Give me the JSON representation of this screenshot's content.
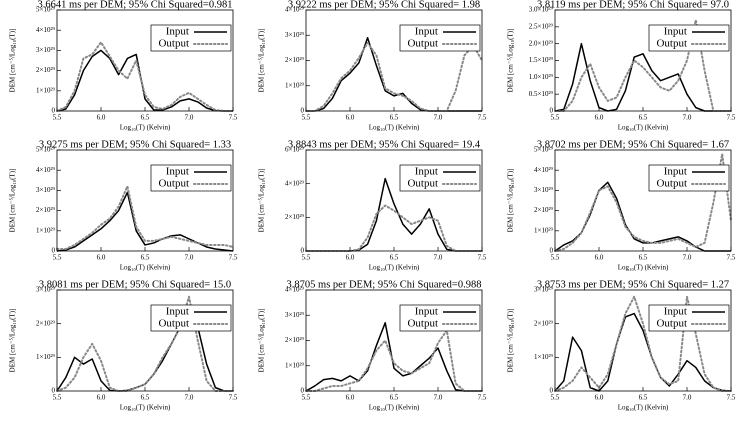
{
  "chart_data": [
    {
      "type": "line",
      "title": "3.6641 ms per DEM; 95% Chi Squared=0.981",
      "x_label": "Log₁₀(T) (Kelvin)",
      "y_label": "DEM [cm⁻⁵/Log₁₀(T)]",
      "x": [
        5.5,
        5.6,
        5.7,
        5.8,
        5.9,
        6.0,
        6.1,
        6.2,
        6.3,
        6.4,
        6.5,
        6.6,
        6.7,
        6.8,
        6.9,
        7.0,
        7.1,
        7.2,
        7.3,
        7.4,
        7.5
      ],
      "series": [
        {
          "name": "Input",
          "color": "#000000",
          "style": "solid",
          "values": [
            0,
            1e+28,
            8e+28,
            2e+29,
            2.7e+29,
            3e+29,
            2.6e+29,
            1.8e+29,
            2.6e+29,
            2.8e+29,
            6e+28,
            5e+27,
            5e+27,
            2e+28,
            5e+28,
            6e+28,
            4.5e+28,
            1.5e+28,
            2e+27,
            0,
            0
          ]
        },
        {
          "name": "Output",
          "color": "#888888",
          "style": "dotted",
          "values": [
            0,
            2e+28,
            1e+29,
            2.6e+29,
            2.8e+29,
            3.4e+29,
            2.7e+29,
            2e+29,
            1.6e+29,
            2.5e+29,
            8e+28,
            2e+28,
            1e+28,
            3e+28,
            7e+28,
            9e+28,
            6e+28,
            3e+28,
            5e+27,
            0,
            0
          ]
        }
      ],
      "xlim": [
        5.5,
        7.5
      ],
      "xticks": [
        5.5,
        {
          "value": 6,
          "label": "6.0"
        },
        6.5,
        {
          "value": 7,
          "label": "7.0"
        },
        7.5
      ],
      "ylim": [
        0,
        5e+29
      ],
      "yticks": [
        0,
        {
          "value": 1e+29,
          "label": "1×10²⁹"
        },
        {
          "value": 2e+29,
          "label": "2×10²⁹"
        },
        {
          "value": 3e+29,
          "label": "3×10²⁹"
        },
        {
          "value": 4e+29,
          "label": "4×10²⁹"
        },
        {
          "value": 5e+29,
          "label": "5×10²⁹"
        }
      ]
    },
    {
      "type": "line",
      "title": "3.9222 ms per DEM; 95% Chi Squared= 1.98",
      "x_label": "Log₁₀(T) (Kelvin)",
      "y_label": "DEM [cm⁻⁵/Log₁₀(T)]",
      "x": [
        5.5,
        5.6,
        5.7,
        5.8,
        5.9,
        6.0,
        6.1,
        6.2,
        6.3,
        6.4,
        6.5,
        6.6,
        6.7,
        6.8,
        6.9,
        7.0,
        7.1,
        7.2,
        7.3,
        7.4,
        7.5
      ],
      "series": [
        {
          "name": "Input",
          "color": "#000000",
          "style": "solid",
          "values": [
            0,
            0,
            1e+28,
            5e+28,
            1.2e+29,
            1.5e+29,
            1.9e+29,
            2.9e+29,
            1.8e+29,
            8e+28,
            6e+28,
            7e+28,
            3e+28,
            5e+27,
            0,
            0,
            0,
            0,
            0,
            0,
            0
          ]
        },
        {
          "name": "Output",
          "color": "#888888",
          "style": "dotted",
          "values": [
            0,
            0,
            2e+28,
            7e+28,
            1.3e+29,
            1.6e+29,
            2.1e+29,
            2.7e+29,
            2.2e+29,
            9e+28,
            7e+28,
            6e+28,
            4e+28,
            1e+28,
            0,
            0,
            0,
            8e+28,
            2.2e+29,
            2.6e+29,
            2e+29
          ]
        }
      ],
      "xlim": [
        5.5,
        7.5
      ],
      "xticks": [
        5.5,
        {
          "value": 6,
          "label": "6.0"
        },
        6.5,
        {
          "value": 7,
          "label": "7.0"
        },
        7.5
      ],
      "ylim": [
        0,
        4e+29
      ],
      "yticks": [
        0,
        {
          "value": 1e+29,
          "label": "1×10²⁹"
        },
        {
          "value": 2e+29,
          "label": "2×10²⁹"
        },
        {
          "value": 3e+29,
          "label": "3×10²⁹"
        },
        {
          "value": 4e+29,
          "label": "4×10²⁹"
        }
      ]
    },
    {
      "type": "line",
      "title": "3.8119 ms per DEM; 95% Chi Squared= 97.0",
      "x_label": "Log₁₀(T) (Kelvin)",
      "y_label": "DEM [cm⁻⁵/Log₁₀(T)]",
      "x": [
        5.5,
        5.6,
        5.7,
        5.8,
        5.9,
        6.0,
        6.1,
        6.2,
        6.3,
        6.4,
        6.5,
        6.6,
        6.7,
        6.8,
        6.9,
        7.0,
        7.1,
        7.2,
        7.3,
        7.4,
        7.5
      ],
      "series": [
        {
          "name": "Input",
          "color": "#000000",
          "style": "solid",
          "values": [
            0,
            5e+27,
            8e+28,
            2e+29,
            9e+28,
            1e+28,
            0,
            5e+27,
            6e+28,
            1.6e+29,
            1.7e+29,
            1.2e+29,
            9e+28,
            1e+29,
            1.1e+29,
            5e+28,
            1e+28,
            0,
            0,
            0,
            0
          ]
        },
        {
          "name": "Output",
          "color": "#888888",
          "style": "dotted",
          "values": [
            0,
            0,
            3e+28,
            1e+29,
            1.4e+29,
            7e+28,
            3e+28,
            4e+28,
            1e+29,
            1.5e+29,
            1.3e+29,
            1e+29,
            7e+28,
            6e+28,
            9e+28,
            1.5e+29,
            2.7e+29,
            1.2e+29,
            0,
            0,
            0
          ]
        }
      ],
      "xlim": [
        5.5,
        7.5
      ],
      "xticks": [
        5.5,
        {
          "value": 6,
          "label": "6.0"
        },
        6.5,
        {
          "value": 7,
          "label": "7.0"
        },
        7.5
      ],
      "ylim": [
        0,
        3e+29
      ],
      "yticks": [
        0,
        {
          "value": 5e+28,
          "label": "0.5×10²⁹"
        },
        {
          "value": 1e+29,
          "label": "1.0×10²⁹"
        },
        {
          "value": 1.5e+29,
          "label": "1.5×10²⁹"
        },
        {
          "value": 2e+29,
          "label": "2.0×10²⁹"
        },
        {
          "value": 2.5e+29,
          "label": "2.5×10²⁹"
        },
        {
          "value": 3e+29,
          "label": "3.0×10²⁹"
        }
      ]
    },
    {
      "type": "line",
      "title": "3.9275 ms per DEM; 95% Chi Squared= 1.33",
      "x_label": "Log₁₀(T) (Kelvin)",
      "y_label": "DEM [cm⁻⁵/Log₁₀(T)]",
      "x": [
        5.5,
        5.6,
        5.7,
        5.8,
        5.9,
        6.0,
        6.1,
        6.2,
        6.3,
        6.4,
        6.5,
        6.6,
        6.7,
        6.8,
        6.9,
        7.0,
        7.1,
        7.2,
        7.3,
        7.4,
        7.5
      ],
      "series": [
        {
          "name": "Input",
          "color": "#000000",
          "style": "solid",
          "values": [
            0,
            5e+27,
            2e+28,
            5e+28,
            8e+28,
            1.1e+29,
            1.5e+29,
            2e+29,
            2.9e+29,
            1e+29,
            3e+28,
            4e+28,
            6e+28,
            7.5e+28,
            8e+28,
            6e+28,
            4e+28,
            2e+28,
            1e+28,
            5e+27,
            0
          ]
        },
        {
          "name": "Output",
          "color": "#888888",
          "style": "dotted",
          "values": [
            1e+28,
            1e+28,
            3e+28,
            6e+28,
            9e+28,
            1.3e+29,
            1.6e+29,
            2.2e+29,
            3.2e+29,
            1.2e+29,
            5e+28,
            5e+28,
            6e+28,
            7e+28,
            6e+28,
            5e+28,
            4e+28,
            3e+28,
            3e+28,
            3e+28,
            2e+28
          ]
        }
      ],
      "xlim": [
        5.5,
        7.5
      ],
      "xticks": [
        5.5,
        {
          "value": 6,
          "label": "6.0"
        },
        6.5,
        {
          "value": 7,
          "label": "7.0"
        },
        7.5
      ],
      "ylim": [
        0,
        5e+29
      ],
      "yticks": [
        0,
        {
          "value": 1e+29,
          "label": "1×10²⁹"
        },
        {
          "value": 2e+29,
          "label": "2×10²⁹"
        },
        {
          "value": 3e+29,
          "label": "3×10²⁹"
        },
        {
          "value": 4e+29,
          "label": "4×10²⁹"
        },
        {
          "value": 5e+29,
          "label": "5×10²⁹"
        }
      ]
    },
    {
      "type": "line",
      "title": "3.8843 ms per DEM; 95% Chi Squared= 19.4",
      "x_label": "Log₁₀(T) (Kelvin)",
      "y_label": "DEM [cm⁻⁵/Log₁₀(T)]",
      "x": [
        5.5,
        5.6,
        5.7,
        5.8,
        5.9,
        6.0,
        6.1,
        6.2,
        6.3,
        6.4,
        6.5,
        6.6,
        6.7,
        6.8,
        6.9,
        7.0,
        7.1,
        7.2,
        7.3,
        7.4,
        7.5
      ],
      "series": [
        {
          "name": "Input",
          "color": "#000000",
          "style": "solid",
          "values": [
            0,
            0,
            0,
            0,
            0,
            0,
            5e+27,
            4e+28,
            1.8e+29,
            4.3e+29,
            2.8e+29,
            1.6e+29,
            1e+29,
            1.6e+29,
            2.5e+29,
            1e+29,
            1e+28,
            0,
            0,
            0,
            0
          ]
        },
        {
          "name": "Output",
          "color": "#888888",
          "style": "dotted",
          "values": [
            0,
            0,
            0,
            0,
            0,
            0,
            1e+28,
            8e+28,
            2.2e+29,
            2.7e+29,
            2.4e+29,
            2e+29,
            1.6e+29,
            1.8e+29,
            2e+29,
            1.8e+29,
            3e+28,
            0,
            0,
            0,
            0
          ]
        }
      ],
      "xlim": [
        5.5,
        7.5
      ],
      "xticks": [
        5.5,
        {
          "value": 6,
          "label": "6.0"
        },
        6.5,
        {
          "value": 7,
          "label": "7.0"
        },
        7.5
      ],
      "ylim": [
        0,
        6e+29
      ],
      "yticks": [
        0,
        {
          "value": 2e+29,
          "label": "2×10²⁹"
        },
        {
          "value": 4e+29,
          "label": "4×10²⁹"
        },
        {
          "value": 6e+29,
          "label": "6×10²⁹"
        }
      ]
    },
    {
      "type": "line",
      "title": "3.8702 ms per DEM; 95% Chi Squared= 1.67",
      "x_label": "Log₁₀(T) (Kelvin)",
      "y_label": "DEM [cm⁻⁵/Log₁₀(T)]",
      "x": [
        5.5,
        5.6,
        5.7,
        5.8,
        5.9,
        6.0,
        6.1,
        6.2,
        6.3,
        6.4,
        6.5,
        6.6,
        6.7,
        6.8,
        6.9,
        7.0,
        7.1,
        7.2,
        7.3,
        7.4,
        7.5
      ],
      "series": [
        {
          "name": "Input",
          "color": "#000000",
          "style": "solid",
          "values": [
            0,
            3e+28,
            5e+28,
            9e+28,
            1.8e+29,
            3e+29,
            3.4e+29,
            2.6e+29,
            1.3e+29,
            6e+28,
            4e+28,
            4e+28,
            5e+28,
            6e+28,
            7e+28,
            5e+28,
            2e+28,
            0,
            0,
            0,
            0
          ]
        },
        {
          "name": "Output",
          "color": "#888888",
          "style": "dotted",
          "values": [
            0,
            1e+28,
            4e+28,
            9e+28,
            1.9e+29,
            3e+29,
            3.2e+29,
            2.4e+29,
            1.2e+29,
            7e+28,
            5e+28,
            4e+28,
            4e+28,
            5e+28,
            6e+28,
            4e+28,
            2e+28,
            4e+28,
            2.4e+29,
            4.8e+29,
            1.5e+29
          ]
        }
      ],
      "xlim": [
        5.5,
        7.5
      ],
      "xticks": [
        5.5,
        {
          "value": 6,
          "label": "6.0"
        },
        6.5,
        {
          "value": 7,
          "label": "7.0"
        },
        7.5
      ],
      "ylim": [
        0,
        5e+29
      ],
      "yticks": [
        0,
        {
          "value": 1e+29,
          "label": "1×10²⁹"
        },
        {
          "value": 2e+29,
          "label": "2×10²⁹"
        },
        {
          "value": 3e+29,
          "label": "3×10²⁹"
        },
        {
          "value": 4e+29,
          "label": "4×10²⁹"
        },
        {
          "value": 5e+29,
          "label": "5×10²⁹"
        }
      ]
    },
    {
      "type": "line",
      "title": "3.8081 ms per DEM; 95% Chi Squared= 15.0",
      "x_label": "Log₁₀(T) (Kelvin)",
      "y_label": "DEM [cm⁻⁵/Log₁₀(T)]",
      "x": [
        5.5,
        5.6,
        5.7,
        5.8,
        5.9,
        6.0,
        6.1,
        6.2,
        6.3,
        6.4,
        6.5,
        6.6,
        6.7,
        6.8,
        6.9,
        7.0,
        7.1,
        7.2,
        7.3,
        7.4,
        7.5
      ],
      "series": [
        {
          "name": "Input",
          "color": "#000000",
          "style": "solid",
          "values": [
            0,
            4e+28,
            1e+29,
            8e+28,
            9.5e+28,
            3e+28,
            2e+27,
            0,
            2e+27,
            1e+28,
            2e+28,
            5e+28,
            9e+28,
            1.4e+29,
            1.9e+29,
            2.2e+29,
            1.9e+29,
            8e+28,
            1e+28,
            0,
            0
          ]
        },
        {
          "name": "Output",
          "color": "#888888",
          "style": "dotted",
          "values": [
            0,
            1e+28,
            4e+28,
            1e+29,
            1.4e+29,
            9e+28,
            1e+28,
            0,
            0,
            1e+28,
            2e+28,
            5e+28,
            1e+29,
            1.4e+29,
            1.9e+29,
            2.8e+29,
            1.5e+29,
            3e+28,
            0,
            0,
            0
          ]
        }
      ],
      "xlim": [
        5.5,
        7.5
      ],
      "xticks": [
        5.5,
        {
          "value": 6,
          "label": "6.0"
        },
        6.5,
        {
          "value": 7,
          "label": "7.0"
        },
        7.5
      ],
      "ylim": [
        0,
        3e+29
      ],
      "yticks": [
        0,
        {
          "value": 1e+29,
          "label": "1×10²⁹"
        },
        {
          "value": 2e+29,
          "label": "2×10²⁹"
        },
        {
          "value": 3e+29,
          "label": "3×10²⁹"
        }
      ]
    },
    {
      "type": "line",
      "title": "3.8705 ms per DEM; 95% Chi Squared=0.988",
      "x_label": "Log₁₀(T) (Kelvin)",
      "y_label": "DEM [cm⁻⁵/Log₁₀(T)]",
      "x": [
        5.5,
        5.6,
        5.7,
        5.8,
        5.9,
        6.0,
        6.1,
        6.2,
        6.3,
        6.4,
        6.5,
        6.6,
        6.7,
        6.8,
        6.9,
        7.0,
        7.1,
        7.2,
        7.3,
        7.4,
        7.5
      ],
      "series": [
        {
          "name": "Input",
          "color": "#000000",
          "style": "solid",
          "values": [
            0,
            2e+28,
            4.5e+28,
            5e+28,
            4e+28,
            6e+28,
            4e+28,
            8e+28,
            1.8e+29,
            2.7e+29,
            9e+28,
            6e+28,
            7e+28,
            1e+29,
            1.3e+29,
            1.7e+29,
            8e+28,
            5e+27,
            0,
            0,
            0
          ]
        },
        {
          "name": "Output",
          "color": "#888888",
          "style": "dotted",
          "values": [
            0,
            0,
            1e+28,
            2e+28,
            2e+28,
            3e+28,
            4e+28,
            9e+28,
            1.6e+29,
            2e+29,
            1.1e+29,
            8e+28,
            7e+28,
            9e+28,
            1.1e+29,
            1.9e+29,
            2.4e+29,
            3e+28,
            0,
            0,
            0
          ]
        }
      ],
      "xlim": [
        5.5,
        7.5
      ],
      "xticks": [
        5.5,
        {
          "value": 6,
          "label": "6.0"
        },
        6.5,
        {
          "value": 7,
          "label": "7.0"
        },
        7.5
      ],
      "ylim": [
        0,
        4e+29
      ],
      "yticks": [
        0,
        {
          "value": 1e+29,
          "label": "1×10²⁹"
        },
        {
          "value": 2e+29,
          "label": "2×10²⁹"
        },
        {
          "value": 3e+29,
          "label": "3×10²⁹"
        },
        {
          "value": 4e+29,
          "label": "4×10²⁹"
        }
      ]
    },
    {
      "type": "line",
      "title": "3.8753 ms per DEM; 95% Chi Squared= 1.27",
      "x_label": "Log₁₀(T) (Kelvin)",
      "y_label": "DEM [cm⁻⁵/Log₁₀(T)]",
      "x": [
        5.5,
        5.6,
        5.7,
        5.8,
        5.9,
        6.0,
        6.1,
        6.2,
        6.3,
        6.4,
        6.5,
        6.6,
        6.7,
        6.8,
        6.9,
        7.0,
        7.1,
        7.2,
        7.3,
        7.4,
        7.5
      ],
      "series": [
        {
          "name": "Input",
          "color": "#000000",
          "style": "solid",
          "values": [
            0,
            3e+28,
            1.6e+29,
            1.2e+29,
            1e+28,
            0,
            3e+28,
            1.4e+29,
            2.2e+29,
            2.3e+29,
            1.8e+29,
            1e+29,
            4e+28,
            1.5e+28,
            5e+28,
            9e+28,
            7e+28,
            3e+28,
            1e+28,
            2e+27,
            0
          ]
        },
        {
          "name": "Output",
          "color": "#888888",
          "style": "dotted",
          "values": [
            0,
            1e+28,
            3e+28,
            7e+28,
            4e+28,
            1e+28,
            5e+28,
            1.4e+29,
            2.3e+29,
            2.8e+29,
            2e+29,
            1e+29,
            4e+28,
            2e+28,
            3e+28,
            2.8e+29,
            1.7e+29,
            5e+28,
            1e+28,
            0,
            0
          ]
        }
      ],
      "xlim": [
        5.5,
        7.5
      ],
      "xticks": [
        5.5,
        {
          "value": 6,
          "label": "6.0"
        },
        6.5,
        {
          "value": 7,
          "label": "7.0"
        },
        7.5
      ],
      "ylim": [
        0,
        3e+29
      ],
      "yticks": [
        0,
        {
          "value": 1e+29,
          "label": "1×10²⁹"
        },
        {
          "value": 2e+29,
          "label": "2×10²⁹"
        },
        {
          "value": 3e+29,
          "label": "3×10²⁹"
        }
      ]
    }
  ]
}
